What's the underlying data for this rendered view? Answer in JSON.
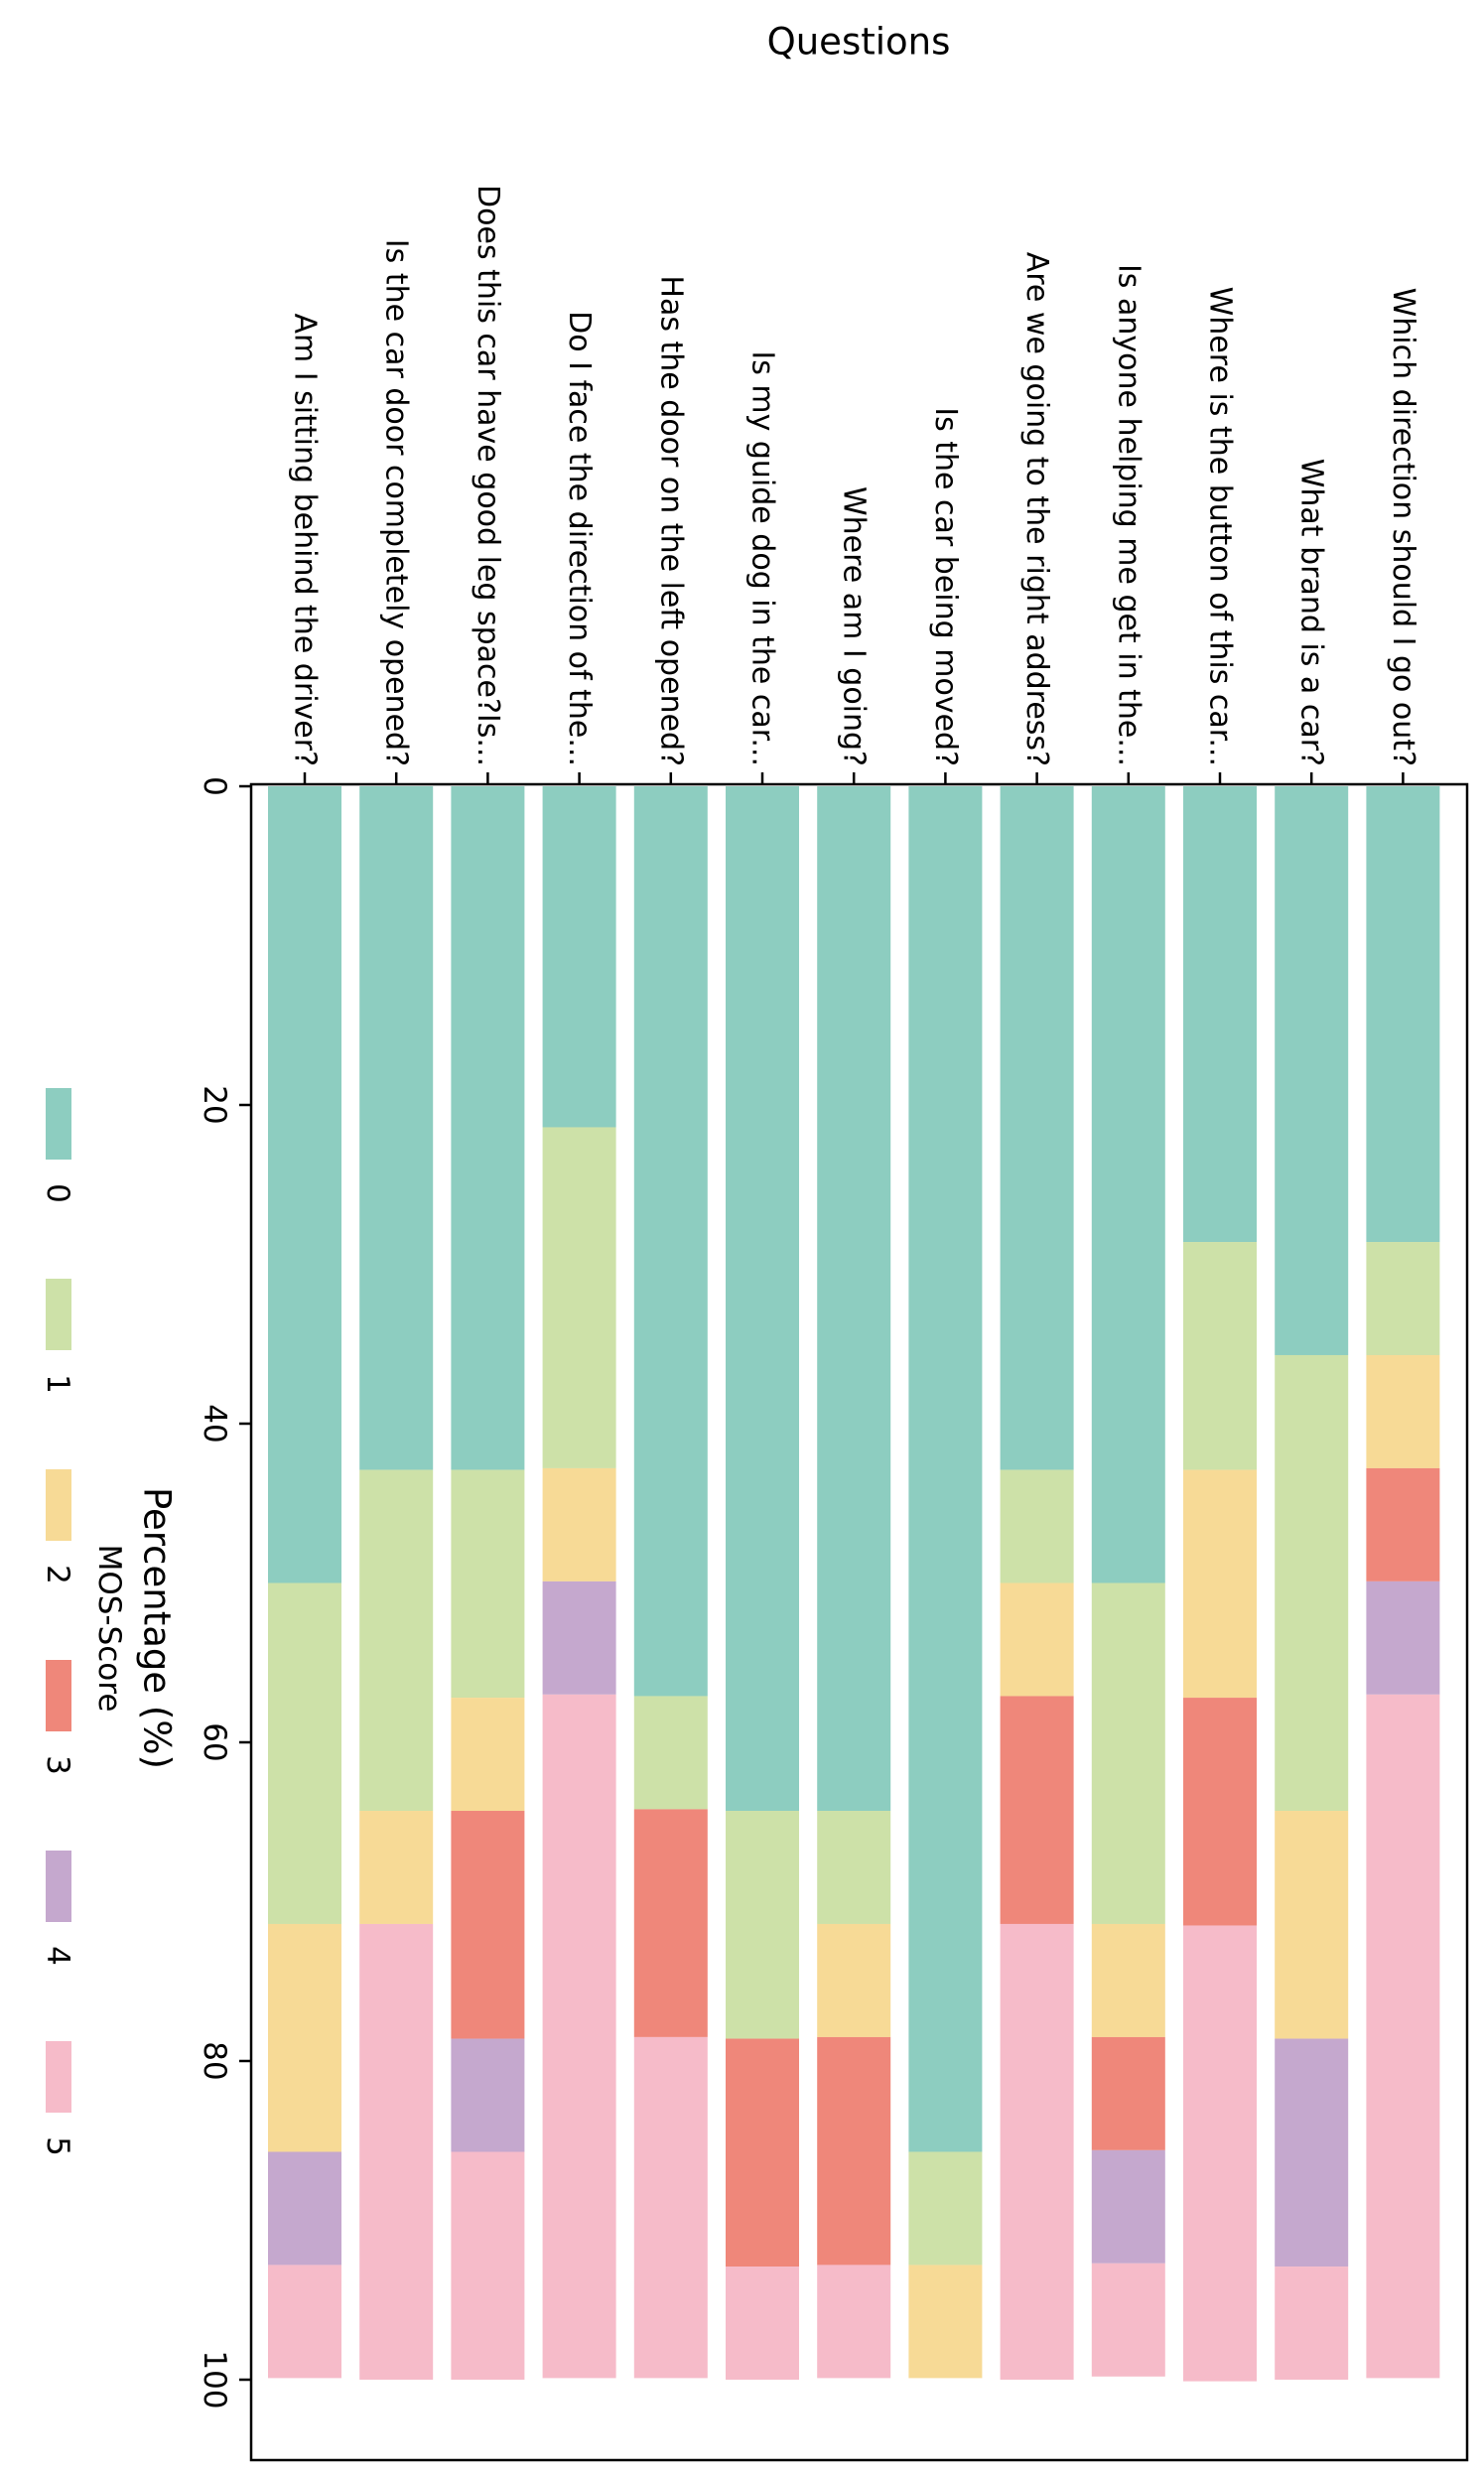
{
  "chart_data": {
    "type": "bar",
    "stacked": true,
    "orientation": "rotated-90-clockwise",
    "xlabel": "Questions",
    "ylabel": "Percentage (%)",
    "ylim": [
      0,
      100
    ],
    "yticks": [
      0,
      20,
      40,
      60,
      80,
      100
    ],
    "grid": false,
    "legend": {
      "title": "MOS-Score",
      "placement": "left-middle",
      "entries": [
        "0",
        "1",
        "2",
        "3",
        "4",
        "5"
      ]
    },
    "colors": [
      "#8dcdc0",
      "#cde1a8",
      "#f7da96",
      "#ef877a",
      "#c5a8ce",
      "#f6bbc9"
    ],
    "categories": [
      "Am I sitting behind the driver?",
      "Is the car door completely opened?",
      "Does this car have good leg space?Is...",
      "Do I face the direction of the...",
      "Has the door on the left opened?",
      "Is my guide dog in the car...",
      "Where am I going?",
      "Is the car being moved?",
      "Are we going to the right address?",
      "Is anyone helping me get in the...",
      "Where is the button of this car...",
      "What brand is a car?",
      "Which direction should I go out?"
    ],
    "series": [
      {
        "name": "0",
        "values": [
          50.0,
          42.9,
          42.9,
          21.4,
          57.1,
          64.3,
          64.3,
          85.7,
          42.9,
          50.0,
          28.6,
          35.7,
          28.6
        ]
      },
      {
        "name": "1",
        "values": [
          21.4,
          21.4,
          14.3,
          21.4,
          7.1,
          14.3,
          7.1,
          7.1,
          7.1,
          21.4,
          14.3,
          28.6,
          7.1
        ]
      },
      {
        "name": "2",
        "values": [
          14.3,
          7.1,
          7.1,
          7.1,
          0,
          0,
          7.1,
          7.1,
          7.1,
          7.1,
          14.3,
          14.3,
          7.1
        ]
      },
      {
        "name": "3",
        "values": [
          0,
          0,
          14.3,
          0,
          14.3,
          14.3,
          14.3,
          0,
          14.3,
          7.1,
          14.3,
          0,
          7.1
        ]
      },
      {
        "name": "4",
        "values": [
          7.1,
          0,
          7.1,
          7.1,
          0,
          0,
          0,
          0,
          0,
          7.1,
          0,
          14.3,
          7.1
        ]
      },
      {
        "name": "5",
        "values": [
          7.1,
          28.6,
          14.3,
          42.9,
          21.4,
          7.1,
          7.1,
          0,
          28.6,
          7.1,
          28.6,
          7.1,
          42.9
        ]
      }
    ]
  }
}
